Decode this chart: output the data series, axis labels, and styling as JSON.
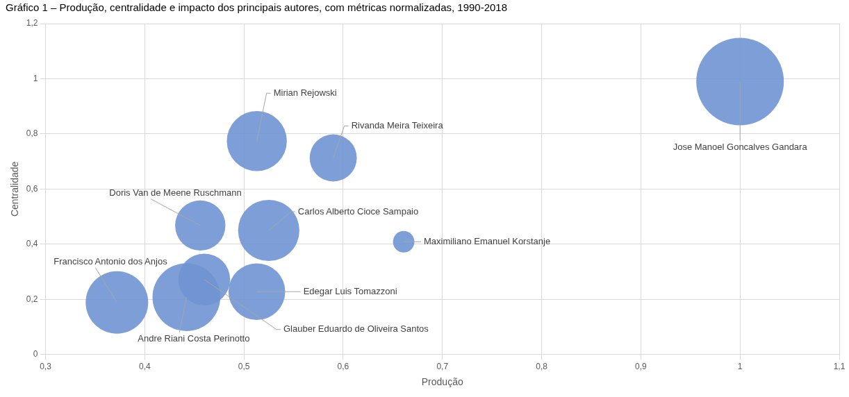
{
  "chart_data": {
    "type": "bubble",
    "title": "Gráfico 1 – Produção, centralidade e impacto dos principais autores, com métricas normalizadas, 1990-2018",
    "xlabel": "Produção",
    "ylabel": "Centralidade",
    "xlim": [
      0.3,
      1.1
    ],
    "xticks": [
      {
        "value": 0.3,
        "label": "0,3"
      },
      {
        "value": 0.4,
        "label": "0,4"
      },
      {
        "value": 0.5,
        "label": "0,5"
      },
      {
        "value": 0.6,
        "label": "0,6"
      },
      {
        "value": 0.7,
        "label": "0,7"
      },
      {
        "value": 0.8,
        "label": "0,8"
      },
      {
        "value": 0.9,
        "label": "0,9"
      },
      1,
      {
        "value": 1.1,
        "label": "1,1"
      }
    ],
    "ylim": [
      0,
      1.2
    ],
    "yticks": [
      0,
      {
        "value": 0.2,
        "label": "0,2"
      },
      {
        "value": 0.4,
        "label": "0,4"
      },
      {
        "value": 0.6,
        "label": "0,6"
      },
      {
        "value": 0.8,
        "label": "0,8"
      },
      1,
      {
        "value": 1.2,
        "label": "1,2"
      }
    ],
    "grid": true,
    "legend": false,
    "series": [
      {
        "name": "Jose Manoel Goncalves Gandara",
        "color": "#6f94d2",
        "x": [
          1.0
        ],
        "values": [
          0.99
        ],
        "sizes": [
          1
        ]
      },
      {
        "name": "Mirian Rejowski",
        "color": "#6f94d2",
        "x": [
          0.513
        ],
        "values": [
          0.774
        ],
        "sizes": [
          0.47
        ]
      },
      {
        "name": "Rivanda Meira Teixeira",
        "color": "#6f94d2",
        "x": [
          0.59
        ],
        "values": [
          0.713
        ],
        "sizes": [
          0.29
        ]
      },
      {
        "name": "Doris Van de Meene Ruschmann",
        "color": "#6f94d2",
        "x": [
          0.456
        ],
        "values": [
          0.468
        ],
        "sizes": [
          0.33
        ]
      },
      {
        "name": "Carlos Alberto Cioce Sampaio",
        "color": "#6f94d2",
        "x": [
          0.525
        ],
        "values": [
          0.45
        ],
        "sizes": [
          0.49
        ]
      },
      {
        "name": "Maximiliano Emanuel Korstanje",
        "color": "#6f94d2",
        "x": [
          0.661
        ],
        "values": [
          0.409
        ],
        "sizes": [
          0.06
        ]
      },
      {
        "name": "Francisco Antonio dos Anjos",
        "color": "#6f94d2",
        "x": [
          0.372
        ],
        "values": [
          0.189
        ],
        "sizes": [
          0.51
        ]
      },
      {
        "name": "Andre Riani Costa Perinotto",
        "color": "#6f94d2",
        "x": [
          0.442
        ],
        "values": [
          0.208
        ],
        "sizes": [
          0.6
        ]
      },
      {
        "name": "Glauber Eduardo de Oliveira Santos",
        "color": "#6f94d2",
        "x": [
          0.46
        ],
        "values": [
          0.272
        ],
        "sizes": [
          0.35
        ]
      },
      {
        "name": "Edegar Luis Tomazzoni",
        "color": "#6f94d2",
        "x": [
          0.513
        ],
        "values": [
          0.228
        ],
        "sizes": [
          0.42
        ]
      }
    ]
  }
}
